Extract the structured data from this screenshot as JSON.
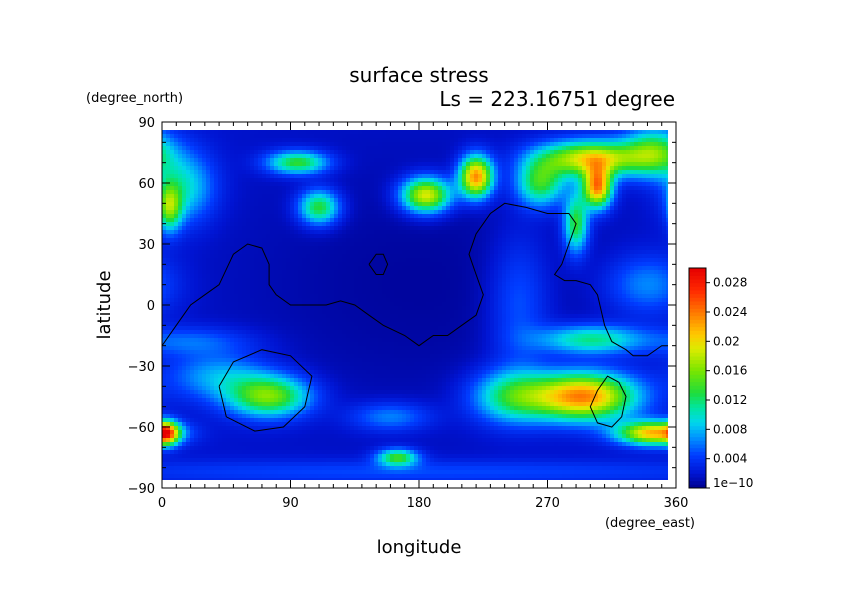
{
  "chart_data": {
    "type": "heatmap",
    "title": "surface stress",
    "subtitle": "Ls = 223.16751 degree",
    "xlabel": "longitude",
    "ylabel": "latitude",
    "x_unit": "(degree_east)",
    "y_unit": "(degree_north)",
    "xlim": [
      0,
      360
    ],
    "ylim": [
      -90,
      90
    ],
    "x_ticks": [
      "0",
      "90",
      "180",
      "270",
      "360"
    ],
    "y_ticks": [
      "90",
      "60",
      "30",
      "0",
      "−30",
      "−60",
      "−90"
    ],
    "x_tick_values": [
      0,
      90,
      180,
      270,
      360
    ],
    "y_tick_values": [
      90,
      60,
      30,
      0,
      -30,
      -60,
      -90
    ],
    "colorbar": {
      "min": 0,
      "max": 0.03,
      "tick_labels": [
        "1e−10",
        "0.004",
        "0.008",
        "0.012",
        "0.016",
        "0.02",
        "0.024",
        "0.028"
      ],
      "tick_values": [
        0,
        0.004,
        0.008,
        0.012,
        0.016,
        0.02,
        0.024,
        0.028
      ]
    },
    "background_value": 0.002,
    "features": [
      {
        "lon": 220,
        "lat": 63,
        "slon": 8,
        "slat": 7,
        "value": 0.022
      },
      {
        "lon": 265,
        "lat": 60,
        "slon": 12,
        "slat": 8,
        "value": 0.012
      },
      {
        "lon": 300,
        "lat": 72,
        "slon": 25,
        "slat": 6,
        "value": 0.018
      },
      {
        "lon": 305,
        "lat": 58,
        "slon": 7,
        "slat": 7,
        "value": 0.022
      },
      {
        "lon": 290,
        "lat": 40,
        "slon": 6,
        "slat": 10,
        "value": 0.012
      },
      {
        "lon": 345,
        "lat": 75,
        "slon": 15,
        "slat": 8,
        "value": 0.012
      },
      {
        "lon": 185,
        "lat": 54,
        "slon": 12,
        "slat": 6,
        "value": 0.018
      },
      {
        "lon": 95,
        "lat": 70,
        "slon": 15,
        "slat": 4,
        "value": 0.012
      },
      {
        "lon": 110,
        "lat": 48,
        "slon": 10,
        "slat": 6,
        "value": 0.012
      },
      {
        "lon": 15,
        "lat": 58,
        "slon": 15,
        "slat": 12,
        "value": 0.008
      },
      {
        "lon": 5,
        "lat": 48,
        "slon": 6,
        "slat": 8,
        "value": 0.012
      },
      {
        "lon": 75,
        "lat": -45,
        "slon": 20,
        "slat": 7,
        "value": 0.014
      },
      {
        "lon": 40,
        "lat": -35,
        "slon": 25,
        "slat": 8,
        "value": 0.006
      },
      {
        "lon": 295,
        "lat": -45,
        "slon": 25,
        "slat": 8,
        "value": 0.022
      },
      {
        "lon": 245,
        "lat": -45,
        "slon": 20,
        "slat": 9,
        "value": 0.01
      },
      {
        "lon": 345,
        "lat": -63,
        "slon": 18,
        "slat": 4,
        "value": 0.02
      },
      {
        "lon": 3,
        "lat": -63,
        "slon": 6,
        "slat": 4,
        "value": 0.018
      },
      {
        "lon": 165,
        "lat": -75,
        "slon": 10,
        "slat": 3,
        "value": 0.012
      },
      {
        "lon": 160,
        "lat": -55,
        "slon": 20,
        "slat": 5,
        "value": 0.005
      },
      {
        "lon": 300,
        "lat": -17,
        "slon": 25,
        "slat": 5,
        "value": 0.01
      },
      {
        "lon": 20,
        "lat": -18,
        "slon": 30,
        "slat": 5,
        "value": 0.004
      },
      {
        "lon": 340,
        "lat": 10,
        "slon": 20,
        "slat": 10,
        "value": 0.005
      },
      {
        "lon": 250,
        "lat": 0,
        "slon": 15,
        "slat": 25,
        "value": 0.004
      },
      {
        "lon": 180,
        "lat": 10,
        "slon": 100,
        "slat": 50,
        "value": -0.0015
      },
      {
        "lon": 180,
        "lat": -82,
        "slon": 180,
        "slat": 4,
        "value": 0.003
      }
    ],
    "contours": [
      [
        [
          0,
          -20
        ],
        [
          10,
          -10
        ],
        [
          20,
          0
        ],
        [
          30,
          5
        ],
        [
          40,
          10
        ],
        [
          50,
          25
        ],
        [
          60,
          30
        ],
        [
          70,
          28
        ],
        [
          75,
          20
        ],
        [
          75,
          10
        ],
        [
          80,
          5
        ],
        [
          90,
          0
        ],
        [
          100,
          0
        ],
        [
          115,
          0
        ],
        [
          125,
          2
        ],
        [
          135,
          0
        ],
        [
          145,
          -5
        ],
        [
          155,
          -10
        ],
        [
          170,
          -15
        ],
        [
          180,
          -20
        ],
        [
          190,
          -15
        ],
        [
          200,
          -15
        ],
        [
          210,
          -10
        ],
        [
          220,
          -5
        ],
        [
          225,
          5
        ],
        [
          220,
          15
        ],
        [
          215,
          25
        ],
        [
          220,
          35
        ],
        [
          230,
          45
        ],
        [
          240,
          50
        ],
        [
          255,
          48
        ],
        [
          270,
          45
        ],
        [
          285,
          45
        ],
        [
          290,
          40
        ],
        [
          285,
          30
        ],
        [
          280,
          20
        ],
        [
          275,
          15
        ],
        [
          282,
          12
        ],
        [
          290,
          12
        ],
        [
          300,
          10
        ],
        [
          305,
          5
        ],
        [
          310,
          -10
        ],
        [
          315,
          -18
        ],
        [
          325,
          -22
        ],
        [
          330,
          -25
        ],
        [
          340,
          -25
        ],
        [
          350,
          -20
        ],
        [
          360,
          -20
        ]
      ],
      [
        [
          145,
          20
        ],
        [
          150,
          25
        ],
        [
          155,
          25
        ],
        [
          158,
          20
        ],
        [
          155,
          15
        ],
        [
          150,
          15
        ],
        [
          145,
          20
        ]
      ],
      [
        [
          40,
          -40
        ],
        [
          50,
          -28
        ],
        [
          70,
          -22
        ],
        [
          90,
          -25
        ],
        [
          105,
          -35
        ],
        [
          100,
          -50
        ],
        [
          85,
          -60
        ],
        [
          65,
          -62
        ],
        [
          45,
          -55
        ],
        [
          40,
          -40
        ]
      ],
      [
        [
          305,
          -42
        ],
        [
          312,
          -35
        ],
        [
          320,
          -38
        ],
        [
          325,
          -45
        ],
        [
          322,
          -55
        ],
        [
          315,
          -60
        ],
        [
          305,
          -58
        ],
        [
          300,
          -50
        ],
        [
          305,
          -42
        ]
      ]
    ]
  }
}
